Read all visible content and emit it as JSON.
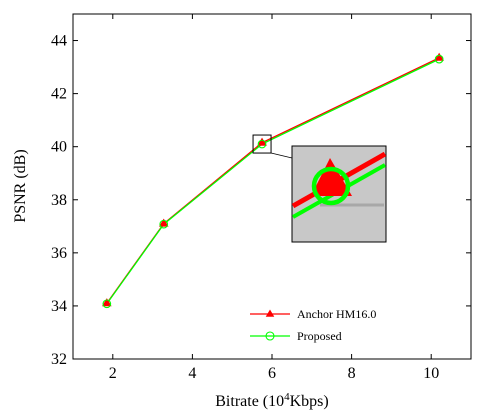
{
  "chart_data": {
    "type": "line",
    "xlabel": "Bitrate (10^4Kbps)",
    "xlabel_parts": {
      "prefix": "Bitrate (10",
      "sup": "4",
      "suffix": "Kbps)"
    },
    "ylabel": "PSNR (dB)",
    "xlim": [
      1,
      11
    ],
    "ylim": [
      32,
      45
    ],
    "xticks": [
      2,
      4,
      6,
      8,
      10
    ],
    "yticks": [
      32,
      34,
      36,
      38,
      40,
      42,
      44
    ],
    "grid": false,
    "legend_position": "bottom-center",
    "series": [
      {
        "name": "Anchor HM16.0",
        "color": "#ff0000",
        "marker": "triangle",
        "x": [
          1.85,
          3.28,
          5.75,
          10.2
        ],
        "y": [
          34.1,
          37.1,
          40.15,
          43.35
        ]
      },
      {
        "name": "Proposed",
        "color": "#00ff00",
        "marker": "circle",
        "x": [
          1.85,
          3.28,
          5.75,
          10.2
        ],
        "y": [
          34.08,
          37.08,
          40.1,
          43.3
        ]
      }
    ],
    "inset": {
      "type": "zoom",
      "source_point": [
        5.75,
        40.1
      ],
      "background": "#c8c8c8"
    }
  }
}
